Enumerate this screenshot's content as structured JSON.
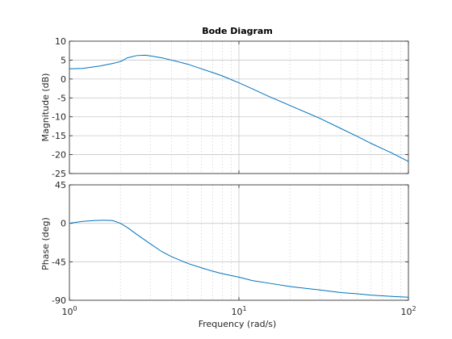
{
  "chart_data": {
    "type": "line",
    "title": "Bode Diagram",
    "xlabel": "Frequency  (rad/s)",
    "x_scale": "log",
    "xlim": [
      1,
      100
    ],
    "x_tick_labels": [
      {
        "base": "10",
        "exp": "0"
      },
      {
        "base": "10",
        "exp": "1"
      },
      {
        "base": "10",
        "exp": "2"
      }
    ],
    "grid": true,
    "panels": [
      {
        "name": "magnitude",
        "ylabel": "Magnitude (dB)",
        "ylim": [
          -25,
          10
        ],
        "yticks": [
          10,
          5,
          0,
          -5,
          -10,
          -15,
          -20,
          -25
        ],
        "x": [
          1,
          1.2,
          1.5,
          1.8,
          2.0,
          2.2,
          2.5,
          2.8,
          3.0,
          3.5,
          4,
          5,
          6,
          7,
          8,
          10,
          12,
          15,
          20,
          30,
          40,
          50,
          60,
          70,
          80,
          100
        ],
        "y": [
          2.7,
          2.8,
          3.4,
          4.1,
          4.6,
          5.6,
          6.2,
          6.3,
          6.1,
          5.6,
          5.0,
          3.9,
          2.7,
          1.7,
          0.8,
          -1.0,
          -2.6,
          -4.6,
          -7.0,
          -10.4,
          -13.1,
          -15.2,
          -17.0,
          -18.4,
          -19.6,
          -21.8
        ]
      },
      {
        "name": "phase",
        "ylabel": "Phase (deg)",
        "ylim": [
          -90,
          45
        ],
        "yticks": [
          45,
          0,
          -45,
          -90
        ],
        "x": [
          1,
          1.2,
          1.4,
          1.6,
          1.8,
          2.0,
          2.2,
          2.5,
          3.0,
          3.5,
          4,
          5,
          6,
          7,
          8,
          10,
          12,
          15,
          20,
          30,
          40,
          50,
          60,
          70,
          80,
          100
        ],
        "y": [
          0,
          2.3,
          3.2,
          3.6,
          3.2,
          0,
          -5,
          -13,
          -24,
          -33,
          -39,
          -47,
          -52,
          -56,
          -59,
          -63,
          -67,
          -70,
          -74,
          -78,
          -81,
          -82.5,
          -84,
          -84.8,
          -85.5,
          -86.5
        ]
      }
    ]
  }
}
